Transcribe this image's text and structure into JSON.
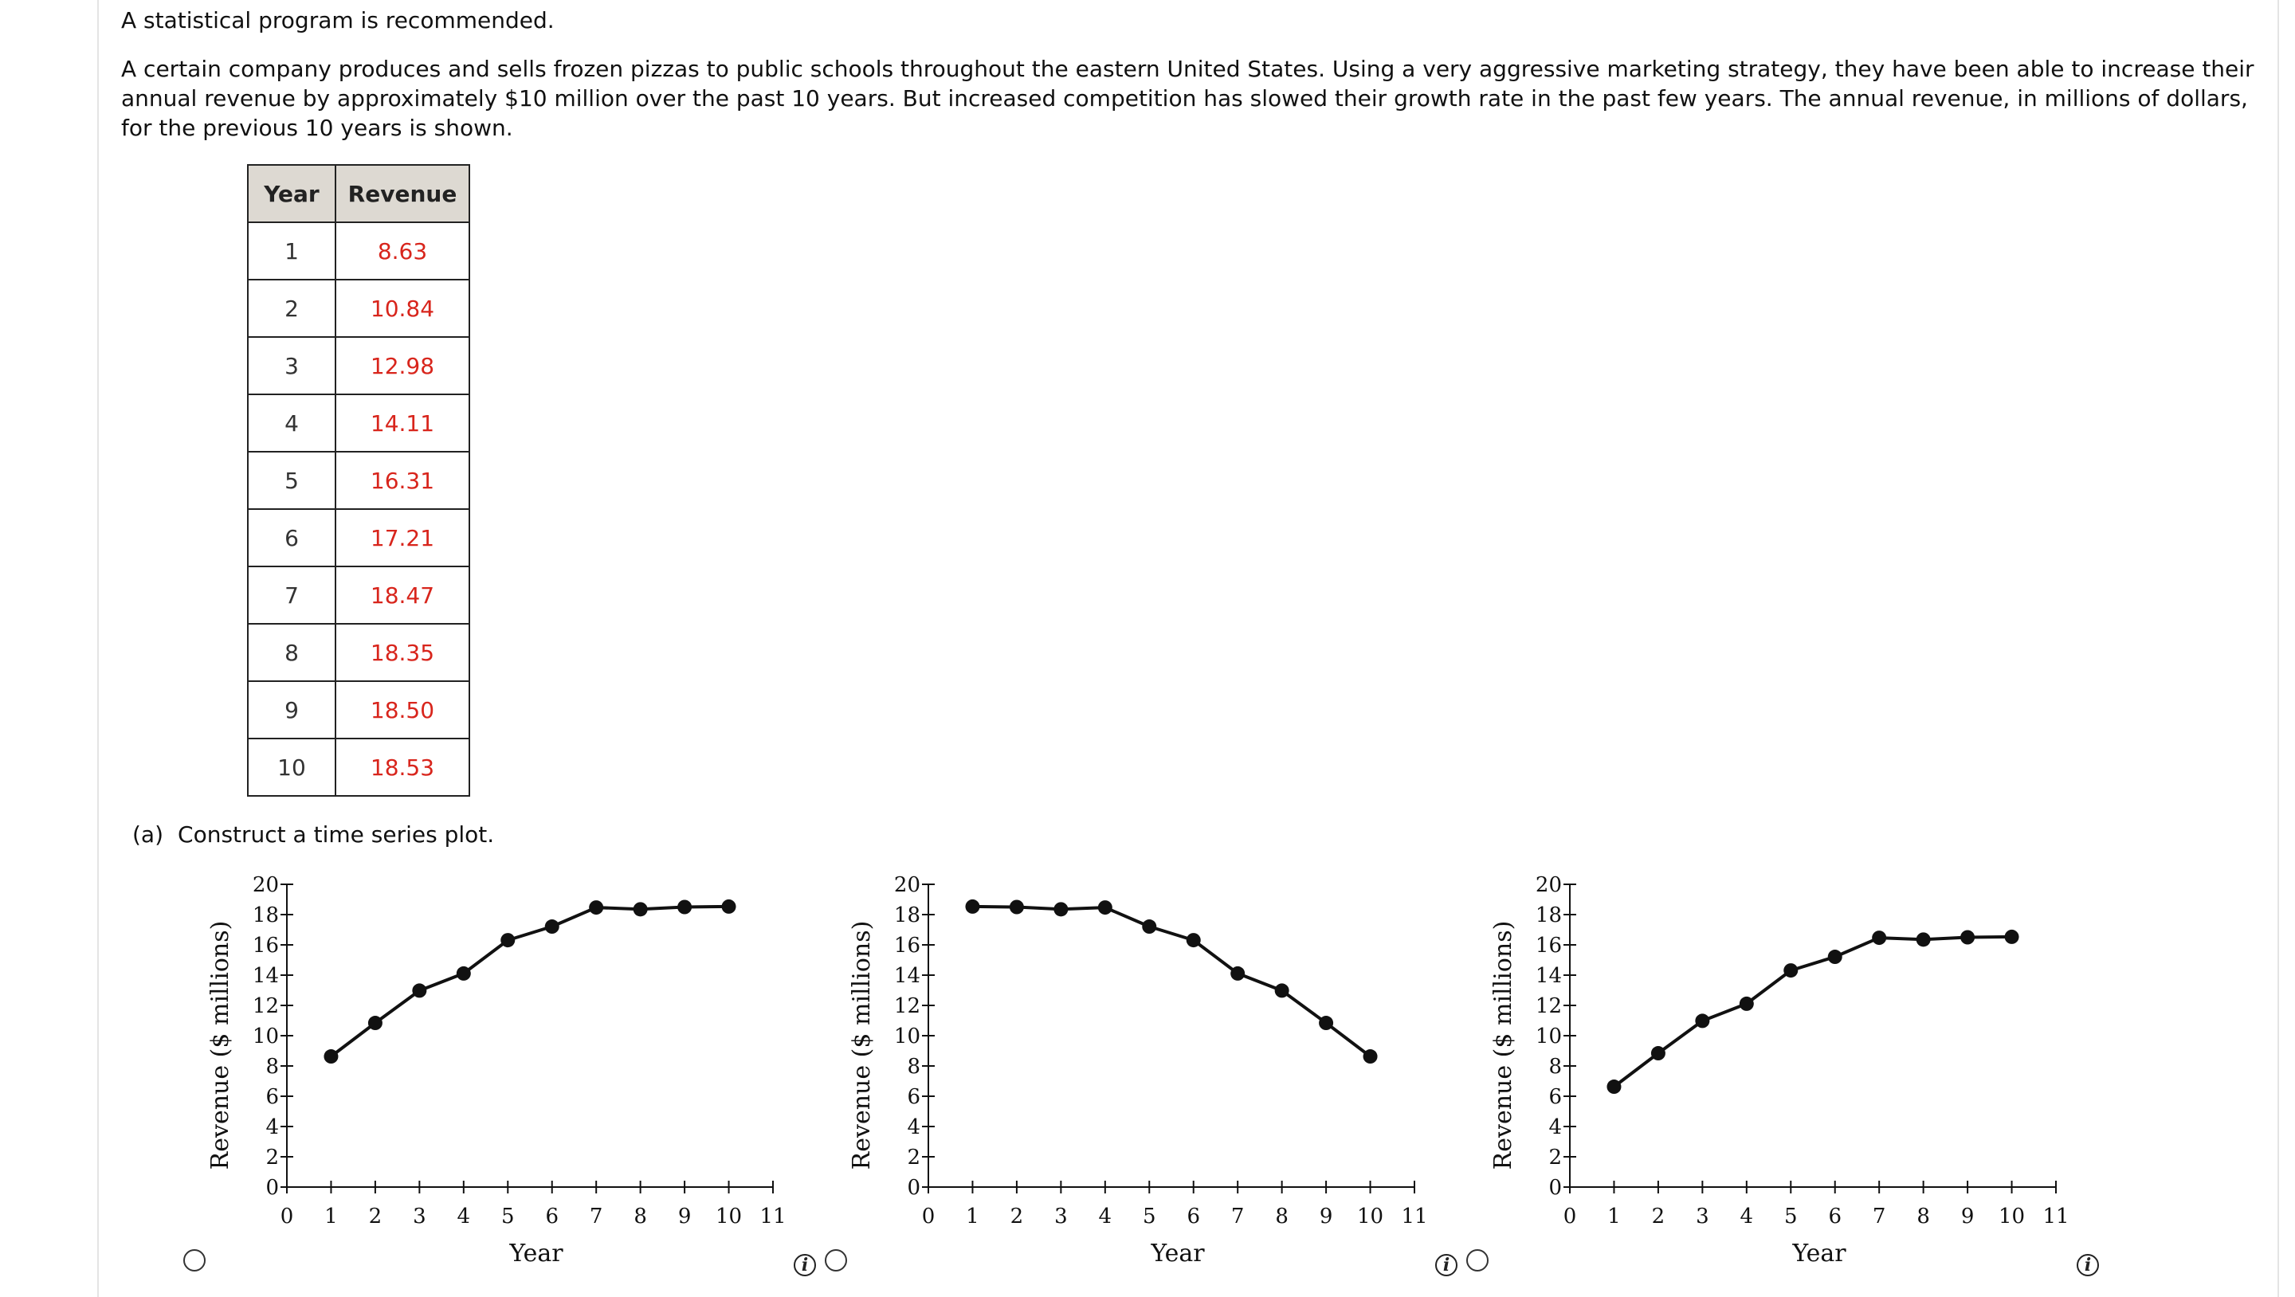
{
  "intro": "A statistical program is recommended.",
  "problem": "A certain company produces and sells frozen pizzas to public schools throughout the eastern United States. Using a very aggressive marketing strategy, they have been able to increase their annual revenue by approximately $10 million over the past 10 years. But increased competition has slowed their growth rate in the past few years. The annual revenue, in millions of dollars, for the previous 10 years is shown.",
  "table": {
    "headers": [
      "Year",
      "Revenue"
    ],
    "rows": [
      [
        "1",
        "8.63"
      ],
      [
        "2",
        "10.84"
      ],
      [
        "3",
        "12.98"
      ],
      [
        "4",
        "14.11"
      ],
      [
        "5",
        "16.31"
      ],
      [
        "6",
        "17.21"
      ],
      [
        "7",
        "18.47"
      ],
      [
        "8",
        "18.35"
      ],
      [
        "9",
        "18.50"
      ],
      [
        "10",
        "18.53"
      ]
    ]
  },
  "part_a": {
    "label": "(a)",
    "text": "Construct a time series plot."
  },
  "info_icon_glyph": "i",
  "accent_colors": {
    "revenue_values": "#d8251c",
    "table_header_bg": "#ddd9d2"
  },
  "chart_data": [
    {
      "type": "line",
      "xlabel": "Year",
      "ylabel": "Revenue ($ millions)",
      "x": [
        1,
        2,
        3,
        4,
        5,
        6,
        7,
        8,
        9,
        10
      ],
      "y": [
        8.63,
        10.84,
        12.98,
        14.11,
        16.31,
        17.21,
        18.47,
        18.35,
        18.5,
        18.53
      ],
      "xlim": [
        0,
        11
      ],
      "ylim": [
        0,
        20
      ],
      "xticks": [
        "0",
        "1",
        "2",
        "3",
        "4",
        "5",
        "6",
        "7",
        "8",
        "9",
        "10",
        "11"
      ],
      "yticks": [
        "0",
        "2",
        "4",
        "6",
        "8",
        "10",
        "12",
        "14",
        "16",
        "18",
        "20"
      ],
      "grid": false
    },
    {
      "type": "line",
      "xlabel": "Year",
      "ylabel": "Revenue ($ millions)",
      "x": [
        1,
        2,
        3,
        4,
        5,
        6,
        7,
        8,
        9,
        10
      ],
      "y": [
        18.53,
        18.5,
        18.35,
        18.47,
        17.21,
        16.31,
        14.11,
        12.98,
        10.84,
        8.63
      ],
      "xlim": [
        0,
        11
      ],
      "ylim": [
        0,
        20
      ],
      "xticks": [
        "0",
        "1",
        "2",
        "3",
        "4",
        "5",
        "6",
        "7",
        "8",
        "9",
        "10",
        "11"
      ],
      "yticks": [
        "0",
        "2",
        "4",
        "6",
        "8",
        "10",
        "12",
        "14",
        "16",
        "18",
        "20"
      ],
      "grid": false
    },
    {
      "type": "line",
      "xlabel": "Year",
      "ylabel": "Revenue ($ millions)",
      "x": [
        1,
        2,
        3,
        4,
        5,
        6,
        7,
        8,
        9,
        10
      ],
      "y": [
        6.63,
        8.84,
        10.98,
        12.11,
        14.31,
        15.21,
        16.47,
        16.35,
        16.5,
        16.53
      ],
      "xlim": [
        0,
        11
      ],
      "ylim": [
        0,
        20
      ],
      "xticks": [
        "0",
        "1",
        "2",
        "3",
        "4",
        "5",
        "6",
        "7",
        "8",
        "9",
        "10",
        "11"
      ],
      "yticks": [
        "0",
        "2",
        "4",
        "6",
        "8",
        "10",
        "12",
        "14",
        "16",
        "18",
        "20"
      ],
      "grid": false
    }
  ]
}
